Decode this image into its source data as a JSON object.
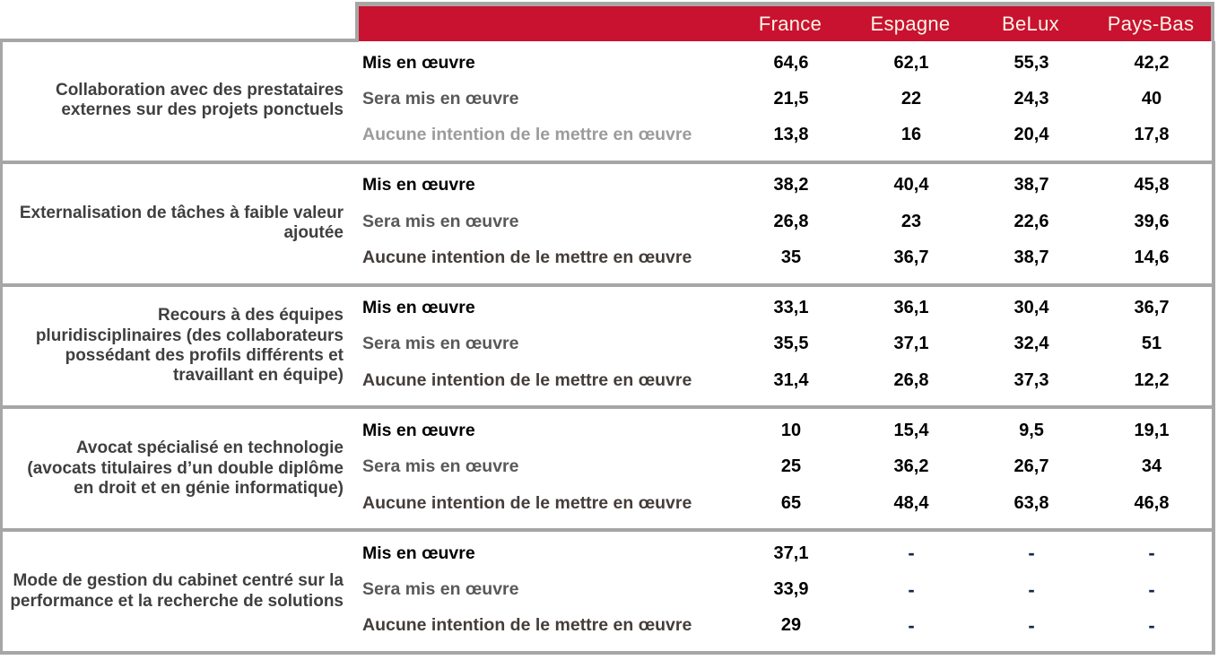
{
  "colors": {
    "accent-red": "#C9122F",
    "header-text": "#FAF5E9",
    "border-grey": "#A6A6A6",
    "dash-navy": "#13294B",
    "group-label": "#3F3F3F"
  },
  "table": {
    "empty_marker": "-",
    "columns": [
      "France",
      "Espagne",
      "BeLux",
      "Pays-Bas"
    ],
    "groups": [
      {
        "label": "Collaboration avec des prestataires externes sur des projets ponctuels",
        "rows": [
          {
            "label": "Mis en œuvre",
            "label_color": "#000000",
            "values": [
              "64,6",
              "62,1",
              "55,3",
              "42,2"
            ]
          },
          {
            "label": "Sera mis en œuvre",
            "label_color": "#595959",
            "values": [
              "21,5",
              "22",
              "24,3",
              "40"
            ]
          },
          {
            "label": "Aucune intention de le mettre en œuvre",
            "label_color": "#9B9B9B",
            "values": [
              "13,8",
              "16",
              "20,4",
              "17,8"
            ]
          }
        ]
      },
      {
        "label": "Externalisation de tâches à faible valeur ajoutée",
        "rows": [
          {
            "label": "Mis en œuvre",
            "label_color": "#000000",
            "values": [
              "38,2",
              "40,4",
              "38,7",
              "45,8"
            ]
          },
          {
            "label": "Sera mis en œuvre",
            "label_color": "#595959",
            "values": [
              "26,8",
              "23",
              "22,6",
              "39,6"
            ]
          },
          {
            "label": "Aucune intention de le mettre en œuvre",
            "label_color": "#453D3A",
            "values": [
              "35",
              "36,7",
              "38,7",
              "14,6"
            ]
          }
        ]
      },
      {
        "label": "Recours à des équipes pluridisciplinaires (des collaborateurs possédant des profils différents et travaillant en équipe)",
        "rows": [
          {
            "label": "Mis en œuvre",
            "label_color": "#000000",
            "values": [
              "33,1",
              "36,1",
              "30,4",
              "36,7"
            ]
          },
          {
            "label": "Sera mis en œuvre",
            "label_color": "#595959",
            "values": [
              "35,5",
              "37,1",
              "32,4",
              "51"
            ]
          },
          {
            "label": "Aucune intention de le mettre en œuvre",
            "label_color": "#453D3A",
            "values": [
              "31,4",
              "26,8",
              "37,3",
              "12,2"
            ]
          }
        ]
      },
      {
        "label": "Avocat spécialisé en technologie (avocats titulaires d’un double diplôme en droit et en génie informatique)",
        "rows": [
          {
            "label": "Mis en œuvre",
            "label_color": "#000000",
            "values": [
              "10",
              "15,4",
              "9,5",
              "19,1"
            ]
          },
          {
            "label": "Sera mis en œuvre",
            "label_color": "#595959",
            "values": [
              "25",
              "36,2",
              "26,7",
              "34"
            ]
          },
          {
            "label": "Aucune intention de le mettre en œuvre",
            "label_color": "#453D3A",
            "values": [
              "65",
              "48,4",
              "63,8",
              "46,8"
            ]
          }
        ]
      },
      {
        "label": "Mode de gestion du cabinet centré sur la performance et la recherche de solutions",
        "rows": [
          {
            "label": "Mis en œuvre",
            "label_color": "#000000",
            "values": [
              "37,1",
              "-",
              "-",
              "-"
            ]
          },
          {
            "label": "Sera mis en œuvre",
            "label_color": "#595959",
            "values": [
              "33,9",
              "-",
              "-",
              "-"
            ]
          },
          {
            "label": "Aucune intention de le mettre en œuvre",
            "label_color": "#453D3A",
            "values": [
              "29",
              "-",
              "-",
              "-"
            ]
          }
        ]
      }
    ]
  },
  "chart_data": {
    "type": "table",
    "columns": [
      "France",
      "Espagne",
      "BeLux",
      "Pays-Bas"
    ],
    "rows": [
      {
        "category": "Collaboration avec des prestataires externes sur des projets ponctuels",
        "measure": "Mis en œuvre",
        "values": [
          64.6,
          62.1,
          55.3,
          42.2
        ]
      },
      {
        "category": "Collaboration avec des prestataires externes sur des projets ponctuels",
        "measure": "Sera mis en œuvre",
        "values": [
          21.5,
          22,
          24.3,
          40
        ]
      },
      {
        "category": "Collaboration avec des prestataires externes sur des projets ponctuels",
        "measure": "Aucune intention de le mettre en œuvre",
        "values": [
          13.8,
          16,
          20.4,
          17.8
        ]
      },
      {
        "category": "Externalisation de tâches à faible valeur ajoutée",
        "measure": "Mis en œuvre",
        "values": [
          38.2,
          40.4,
          38.7,
          45.8
        ]
      },
      {
        "category": "Externalisation de tâches à faible valeur ajoutée",
        "measure": "Sera mis en œuvre",
        "values": [
          26.8,
          23,
          22.6,
          39.6
        ]
      },
      {
        "category": "Externalisation de tâches à faible valeur ajoutée",
        "measure": "Aucune intention de le mettre en œuvre",
        "values": [
          35,
          36.7,
          38.7,
          14.6
        ]
      },
      {
        "category": "Recours à des équipes pluridisciplinaires (des collaborateurs possédant des profils différents et travaillant en équipe)",
        "measure": "Mis en œuvre",
        "values": [
          33.1,
          36.1,
          30.4,
          36.7
        ]
      },
      {
        "category": "Recours à des équipes pluridisciplinaires (des collaborateurs possédant des profils différents et travaillant en équipe)",
        "measure": "Sera mis en œuvre",
        "values": [
          35.5,
          37.1,
          32.4,
          51
        ]
      },
      {
        "category": "Recours à des équipes pluridisciplinaires (des collaborateurs possédant des profils différents et travaillant en équipe)",
        "measure": "Aucune intention de le mettre en œuvre",
        "values": [
          31.4,
          26.8,
          37.3,
          12.2
        ]
      },
      {
        "category": "Avocat spécialisé en technologie (avocats titulaires d’un double diplôme en droit et en génie informatique)",
        "measure": "Mis en œuvre",
        "values": [
          10,
          15.4,
          9.5,
          19.1
        ]
      },
      {
        "category": "Avocat spécialisé en technologie (avocats titulaires d’un double diplôme en droit et en génie informatique)",
        "measure": "Sera mis en œuvre",
        "values": [
          25,
          36.2,
          26.7,
          34
        ]
      },
      {
        "category": "Avocat spécialisé en technologie (avocats titulaires d’un double diplôme en droit et en génie informatique)",
        "measure": "Aucune intention de le mettre en œuvre",
        "values": [
          65,
          48.4,
          63.8,
          46.8
        ]
      },
      {
        "category": "Mode de gestion du cabinet centré sur la performance et la recherche de solutions",
        "measure": "Mis en œuvre",
        "values": [
          37.1,
          null,
          null,
          null
        ]
      },
      {
        "category": "Mode de gestion du cabinet centré sur la performance et la recherche de solutions",
        "measure": "Sera mis en œuvre",
        "values": [
          33.9,
          null,
          null,
          null
        ]
      },
      {
        "category": "Mode de gestion du cabinet centré sur la performance et la recherche de solutions",
        "measure": "Aucune intention de le mettre en œuvre",
        "values": [
          29,
          null,
          null,
          null
        ]
      }
    ]
  }
}
